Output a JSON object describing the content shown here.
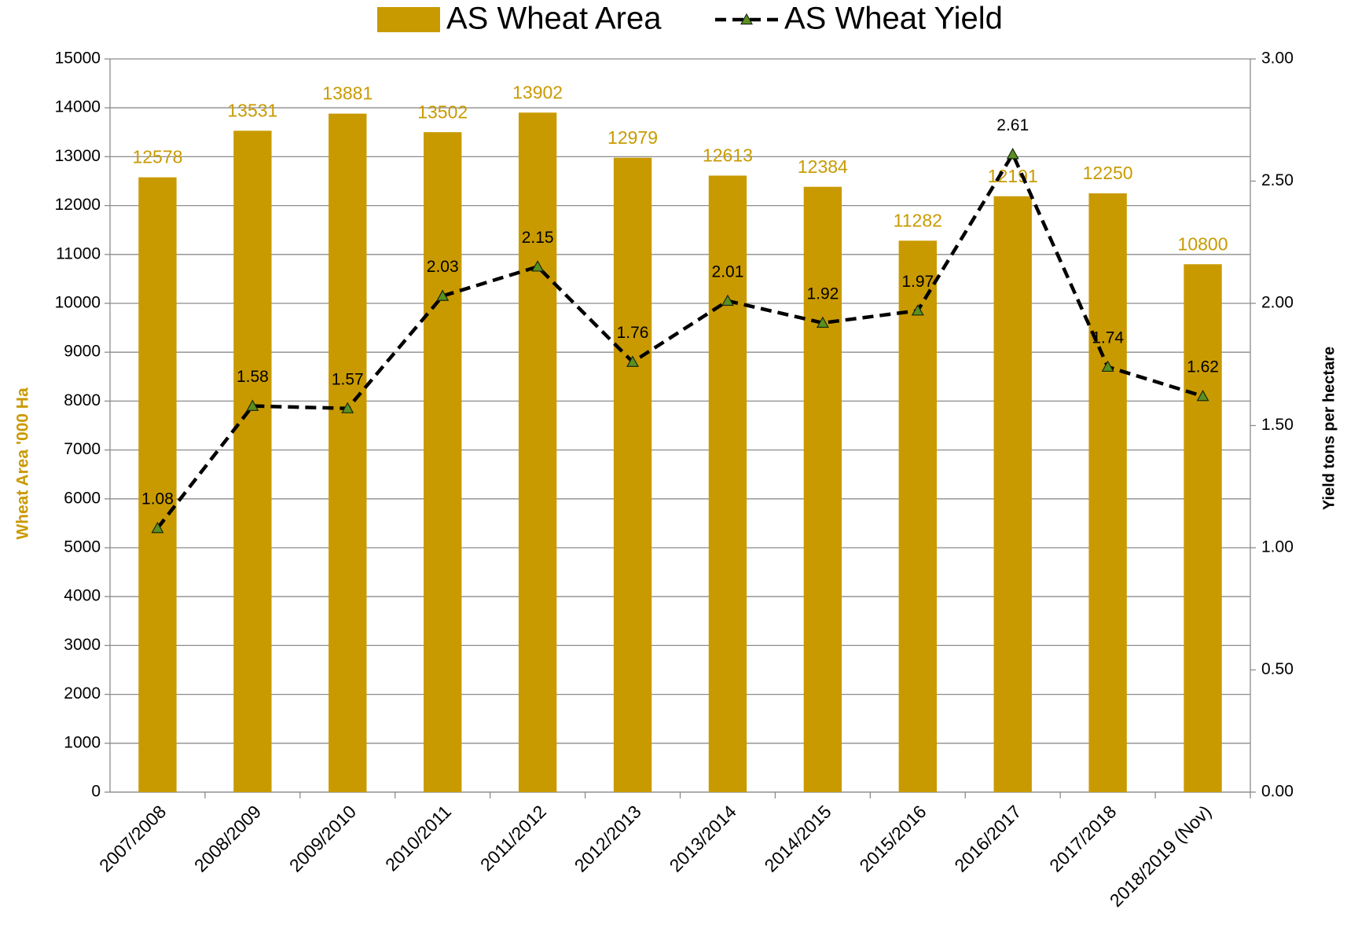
{
  "chart_data": {
    "type": "bar",
    "categories": [
      "2007/2008",
      "2008/2009",
      "2009/2010",
      "2010/2011",
      "2011/2012",
      "2012/2013",
      "2013/2014",
      "2014/2015",
      "2015/2016",
      "2016/2017",
      "2017/2018",
      "2018/2019 (Nov)"
    ],
    "series": [
      {
        "name": "AS Wheat Area",
        "type": "bar",
        "color": "#c99a00",
        "values": [
          12578,
          13531,
          13881,
          13502,
          13902,
          12979,
          12613,
          12384,
          11282,
          12191,
          12250,
          10800
        ]
      },
      {
        "name": "AS Wheat Yield",
        "type": "line",
        "axis": "y2",
        "color": "#000000",
        "marker_color": "#5b8f22",
        "values": [
          1.08,
          1.58,
          1.57,
          2.03,
          2.15,
          1.76,
          2.01,
          1.92,
          1.97,
          2.61,
          1.74,
          1.62
        ]
      }
    ],
    "ylabel": "Wheat Area '000 Ha",
    "y2label": "Yield tons per hectare",
    "ylim": [
      0,
      15000
    ],
    "yticks": [
      0,
      1000,
      2000,
      3000,
      4000,
      5000,
      6000,
      7000,
      8000,
      9000,
      10000,
      11000,
      12000,
      13000,
      14000,
      15000
    ],
    "y2lim": [
      0,
      3
    ],
    "y2ticks": [
      {
        "value": 0,
        "label": "0.00"
      },
      {
        "value": 0.5,
        "label": "0.50"
      },
      {
        "value": 1,
        "label": "1.00"
      },
      {
        "value": 1.5,
        "label": "1.50"
      },
      {
        "value": 2,
        "label": "2.00"
      },
      {
        "value": 2.5,
        "label": "2.50"
      },
      {
        "value": 3,
        "label": "3.00"
      }
    ],
    "grid": true,
    "legend": "top"
  }
}
